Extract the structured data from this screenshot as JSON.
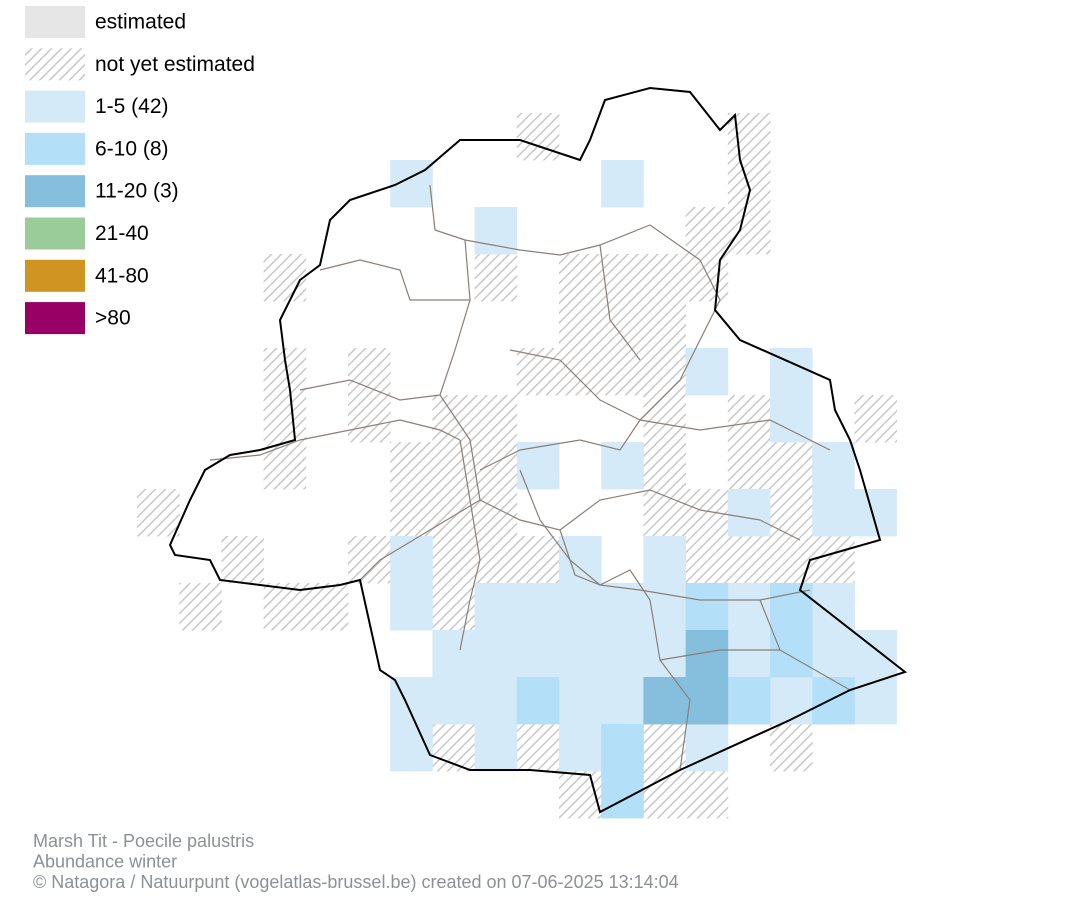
{
  "legend": [
    "estimated",
    "not yet estimated",
    "1-5 (42)",
    "6-10 (8)",
    "11-20 (3)",
    "21-40",
    "41-80",
    ">80"
  ],
  "footer": [
    "Marsh Tit - Poecile palustris",
    "Abundance winter",
    "© Natagora / Natuurpunt (vogelatlas-brussel.be) created on 07-06-2025 13:14:04"
  ]
}
